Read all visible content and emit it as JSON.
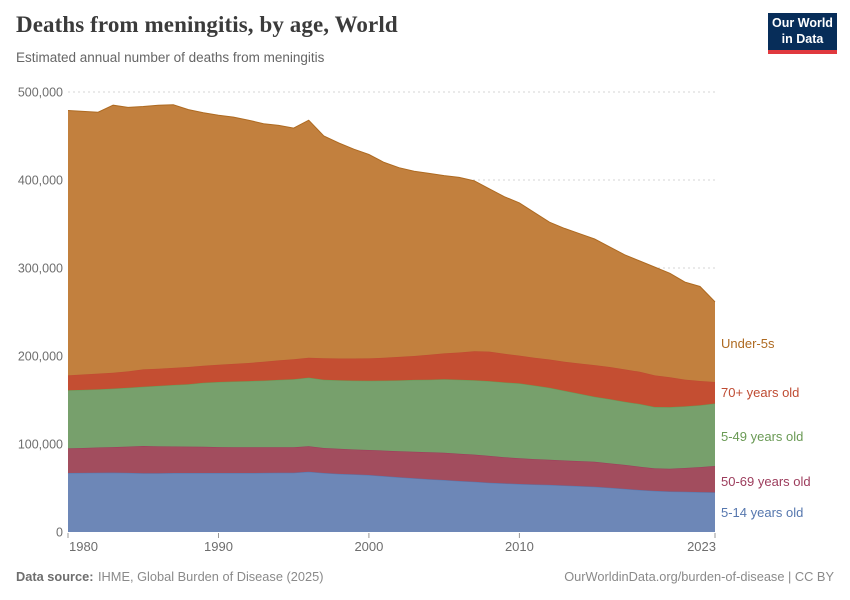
{
  "header": {
    "title": "Deaths from meningitis, by age, World",
    "subtitle": "Estimated annual number of deaths from meningitis",
    "logo": {
      "line1": "Our World",
      "line2": "in Data",
      "bg_color": "#072d59",
      "bar_color": "#e0393e"
    }
  },
  "footer": {
    "source_label": "Data source:",
    "source_text": "IHME, Global Burden of Disease (2025)",
    "link_text": "OurWorldinData.org/burden-of-disease | CC BY"
  },
  "chart_data": {
    "type": "area",
    "stacked": true,
    "title": "Deaths from meningitis, by age, World",
    "xlabel": "",
    "ylabel": "Estimated annual number of deaths",
    "xlim": [
      1980,
      2023
    ],
    "ylim": [
      0,
      500000
    ],
    "grid": true,
    "grid_color": "#d6d6d6",
    "axis_text_color": "#6e6e6e",
    "legend_position": "right",
    "x": [
      1980,
      1981,
      1982,
      1983,
      1984,
      1985,
      1986,
      1987,
      1988,
      1989,
      1990,
      1991,
      1992,
      1993,
      1994,
      1995,
      1996,
      1997,
      1998,
      1999,
      2000,
      2001,
      2002,
      2003,
      2004,
      2005,
      2006,
      2007,
      2008,
      2009,
      2010,
      2011,
      2012,
      2013,
      2014,
      2015,
      2016,
      2017,
      2018,
      2019,
      2020,
      2021,
      2022,
      2023
    ],
    "series": [
      {
        "name": "5-14 years old",
        "fill": "#6d87b7",
        "label_color": "#5677ae",
        "values": [
          67000,
          67200,
          67300,
          67500,
          67200,
          66700,
          66800,
          67000,
          67000,
          67000,
          67000,
          67000,
          67100,
          67200,
          67300,
          67400,
          68500,
          67000,
          66000,
          65400,
          64800,
          63500,
          62200,
          61000,
          60000,
          59100,
          58000,
          57000,
          56000,
          55200,
          54500,
          54000,
          53500,
          52800,
          52200,
          51500,
          50200,
          49000,
          47700,
          46700,
          46000,
          45700,
          45300,
          45000
        ]
      },
      {
        "name": "50-69 years old",
        "fill": "#a24d5e",
        "label_color": "#9c3c5c",
        "values": [
          28000,
          28300,
          28700,
          29000,
          29800,
          31000,
          30500,
          30200,
          30000,
          29800,
          29500,
          29400,
          29200,
          29100,
          28900,
          28800,
          29000,
          28500,
          28500,
          28400,
          28400,
          29000,
          29600,
          30200,
          30600,
          31000,
          31000,
          31000,
          30500,
          29800,
          29200,
          28800,
          28500,
          28500,
          28400,
          28400,
          27800,
          27200,
          26500,
          25600,
          25800,
          27000,
          28500,
          30000
        ]
      },
      {
        "name": "5-49 years old",
        "fill": "#77a06c",
        "label_color": "#6a9a55",
        "values": [
          66000,
          66000,
          66000,
          66500,
          67000,
          67400,
          68700,
          69800,
          71000,
          72700,
          74000,
          74600,
          75200,
          75700,
          76600,
          77300,
          78000,
          77500,
          78000,
          78200,
          78700,
          79500,
          80500,
          81600,
          82400,
          83400,
          84000,
          84500,
          85000,
          85000,
          85200,
          83700,
          82000,
          79200,
          76400,
          73800,
          73000,
          71800,
          71200,
          69700,
          70100,
          70000,
          70300,
          71000
        ]
      },
      {
        "name": "70+ years old",
        "fill": "#c44e32",
        "label_color": "#bf4b32",
        "values": [
          17000,
          17500,
          18000,
          18000,
          18500,
          19700,
          19500,
          19500,
          19500,
          19500,
          19500,
          20000,
          20500,
          21500,
          22200,
          22800,
          22500,
          24500,
          24700,
          25200,
          25400,
          26000,
          26700,
          27200,
          28500,
          29500,
          31000,
          33000,
          33500,
          32500,
          31600,
          31500,
          32000,
          33000,
          34500,
          36000,
          36500,
          36800,
          36700,
          36000,
          34000,
          30500,
          27500,
          24500
        ]
      },
      {
        "name": "Under-5s",
        "fill": "#c2803e",
        "label_color": "#ae6a21",
        "values": [
          301000,
          299000,
          297000,
          304000,
          300000,
          298700,
          299500,
          299000,
          292500,
          287500,
          283500,
          280500,
          276000,
          270500,
          267000,
          262700,
          270000,
          252500,
          244800,
          237800,
          231700,
          222000,
          215000,
          210000,
          206000,
          202000,
          199000,
          193500,
          185000,
          178500,
          173500,
          165000,
          156000,
          151500,
          147500,
          143300,
          136500,
          130200,
          125900,
          123000,
          118100,
          110800,
          107400,
          91000
        ]
      }
    ],
    "yticks": [
      {
        "v": 0,
        "label": "0"
      },
      {
        "v": 100000,
        "label": "100,000"
      },
      {
        "v": 200000,
        "label": "200,000"
      },
      {
        "v": 300000,
        "label": "300,000"
      },
      {
        "v": 400000,
        "label": "400,000"
      },
      {
        "v": 500000,
        "label": "500,000"
      }
    ],
    "xticks": [
      {
        "v": 1980,
        "label": "1980",
        "anchor": "start"
      },
      {
        "v": 1990,
        "label": "1990",
        "anchor": "middle"
      },
      {
        "v": 2000,
        "label": "2000",
        "anchor": "middle"
      },
      {
        "v": 2010,
        "label": "2010",
        "anchor": "middle"
      },
      {
        "v": 2023,
        "label": "2023",
        "anchor": "end"
      }
    ]
  }
}
